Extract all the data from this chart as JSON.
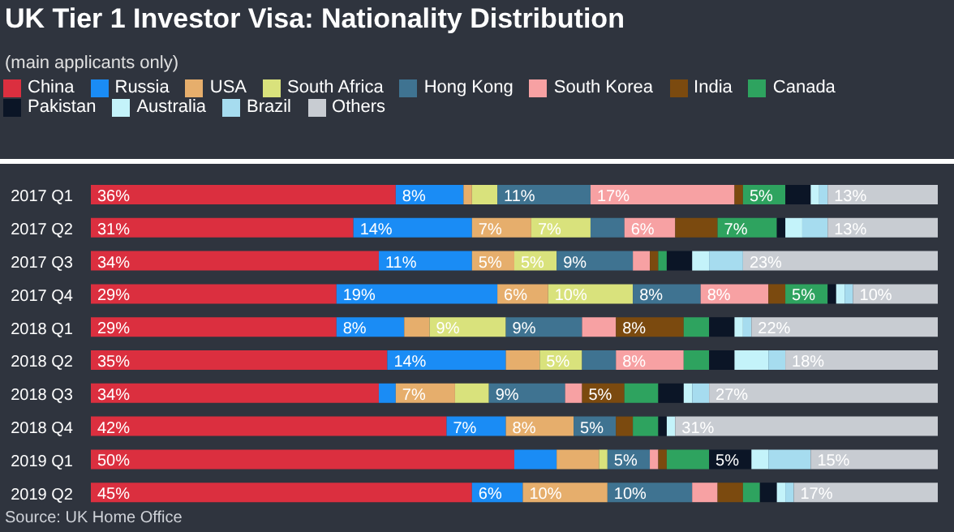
{
  "chart_data": {
    "type": "bar",
    "orientation": "horizontal",
    "stacked": true,
    "title": "UK Tier 1 Investor Visa: Nationality Distribution",
    "subtitle": "(main applicants only)",
    "annotations": [
      "Source: UK Home Office"
    ],
    "categories": [
      "2017 Q1",
      "2017 Q2",
      "2017 Q3",
      "2017 Q4",
      "2018 Q1",
      "2018 Q2",
      "2018 Q3",
      "2018 Q4",
      "2019 Q1",
      "2019 Q2"
    ],
    "xlim": [
      0,
      100
    ],
    "tick_labels": "y",
    "legend": "top",
    "grid": false,
    "series": [
      {
        "name": "China",
        "color": "#db2f3f",
        "values": [
          36,
          31,
          34,
          29,
          29,
          35,
          34,
          42,
          50,
          45
        ],
        "value_labels": [
          "36%",
          "31%",
          "34%",
          "29%",
          "29%",
          "35%",
          "34%",
          "42%",
          "50%",
          "45%"
        ]
      },
      {
        "name": "Russia",
        "color": "#1a8cf5",
        "values": [
          8,
          14,
          11,
          19,
          8,
          14,
          2,
          7,
          5,
          6
        ],
        "value_labels": [
          "8%",
          "14%",
          "11%",
          "19%",
          "8%",
          "14%",
          null,
          "7%",
          null,
          "6%"
        ]
      },
      {
        "name": "USA",
        "color": "#e6ae6c",
        "values": [
          1,
          7,
          5,
          6,
          3,
          4,
          7,
          8,
          5,
          10
        ],
        "value_labels": [
          null,
          "7%",
          "5%",
          "6%",
          null,
          null,
          "7%",
          "8%",
          null,
          "10%"
        ]
      },
      {
        "name": "South Africa",
        "color": "#d9e27c",
        "values": [
          3,
          7,
          5,
          10,
          9,
          5,
          4,
          null,
          1,
          null
        ],
        "value_labels": [
          null,
          "7%",
          "5%",
          "10%",
          "9%",
          "5%",
          null,
          null,
          null,
          null
        ]
      },
      {
        "name": "Hong Kong",
        "color": "#3f7391",
        "values": [
          11,
          4,
          9,
          8,
          9,
          4,
          9,
          5,
          5,
          10
        ],
        "value_labels": [
          "11%",
          null,
          "9%",
          "8%",
          "9%",
          null,
          "9%",
          "5%",
          "5%",
          "10%"
        ]
      },
      {
        "name": "South Korea",
        "color": "#f7a1a3",
        "values": [
          17,
          6,
          2,
          8,
          4,
          8,
          2,
          null,
          1,
          3
        ],
        "value_labels": [
          "17%",
          "6%",
          null,
          "8%",
          null,
          "8%",
          null,
          null,
          null,
          null
        ]
      },
      {
        "name": "India",
        "color": "#7b4a0f",
        "values": [
          1,
          5,
          1,
          2,
          8,
          null,
          5,
          2,
          1,
          3
        ],
        "value_labels": [
          null,
          null,
          null,
          null,
          "8%",
          null,
          "5%",
          null,
          null,
          null
        ]
      },
      {
        "name": "Canada",
        "color": "#2ea35f",
        "values": [
          5,
          7,
          1,
          5,
          3,
          3,
          4,
          3,
          5,
          2
        ],
        "value_labels": [
          "5%",
          "7%",
          null,
          "5%",
          null,
          null,
          null,
          null,
          null,
          null
        ]
      },
      {
        "name": "Pakistan",
        "color": "#0b1526",
        "values": [
          3,
          1,
          3,
          1,
          3,
          3,
          3,
          1,
          5,
          2
        ],
        "value_labels": [
          null,
          null,
          null,
          null,
          null,
          null,
          null,
          null,
          "5%",
          null
        ]
      },
      {
        "name": "Australia",
        "color": "#c4f3fa",
        "values": [
          1,
          2,
          2,
          1,
          1,
          4,
          1,
          1,
          2,
          1
        ]
      },
      {
        "name": "Brazil",
        "color": "#a6dcef",
        "values": [
          1,
          3,
          4,
          1,
          1,
          2,
          2,
          null,
          5,
          1
        ]
      },
      {
        "name": "Others",
        "color": "#c8ccd2",
        "values": [
          13,
          13,
          23,
          10,
          22,
          18,
          27,
          31,
          15,
          17
        ],
        "value_labels": [
          "13%",
          "13%",
          "23%",
          "10%",
          "22%",
          "18%",
          "27%",
          "31%",
          "15%",
          "17%"
        ]
      }
    ]
  }
}
